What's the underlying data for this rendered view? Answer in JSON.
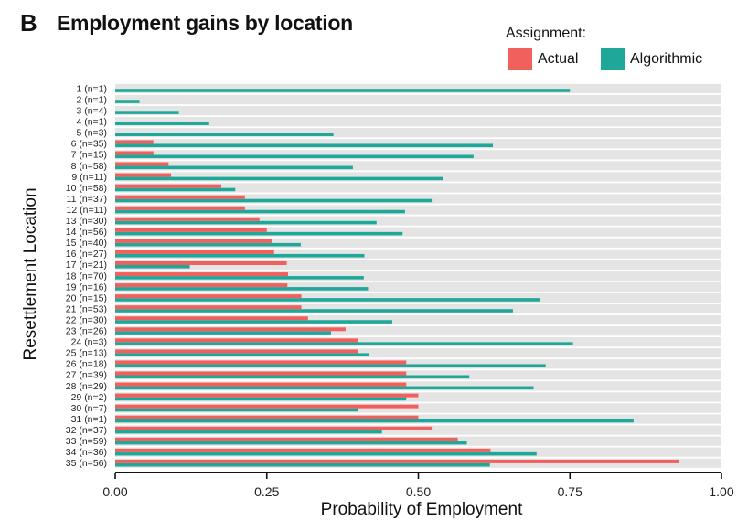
{
  "panel_letter": "B",
  "chart_data": {
    "type": "bar",
    "orientation": "horizontal",
    "title": "Employment gains by location",
    "xlabel": "Probability of Employment",
    "ylabel": "Resettlement Location",
    "xlim": [
      0,
      1
    ],
    "xticks": [
      "0.00",
      "0.25",
      "0.50",
      "0.75",
      "1.00"
    ],
    "legend_title": "Assignment:",
    "legend_position": "top-right",
    "grid": false,
    "categories": [
      "1 (n=1)",
      "2 (n=1)",
      "3 (n=4)",
      "4 (n=1)",
      "5 (n=3)",
      "6 (n=35)",
      "7 (n=15)",
      "8 (n=58)",
      "9 (n=11)",
      "10 (n=58)",
      "11 (n=37)",
      "12 (n=11)",
      "13 (n=30)",
      "14 (n=56)",
      "15 (n=40)",
      "16 (n=27)",
      "17 (n=21)",
      "18 (n=70)",
      "19 (n=16)",
      "20 (n=15)",
      "21 (n=53)",
      "22 (n=30)",
      "23 (n=26)",
      "24 (n=3)",
      "25 (n=13)",
      "26 (n=18)",
      "27 (n=39)",
      "28 (n=29)",
      "29 (n=2)",
      "30 (n=7)",
      "31 (n=1)",
      "32 (n=37)",
      "33 (n=59)",
      "34 (n=36)",
      "35 (n=56)"
    ],
    "series": [
      {
        "name": "Actual",
        "color": "#f0605d",
        "values": [
          0.0,
          0.0,
          0.0,
          0.0,
          0.0,
          0.063,
          0.063,
          0.088,
          0.092,
          0.175,
          0.214,
          0.214,
          0.238,
          0.25,
          0.258,
          0.262,
          0.283,
          0.285,
          0.284,
          0.307,
          0.307,
          0.318,
          0.38,
          0.4,
          0.4,
          0.48,
          0.48,
          0.48,
          0.5,
          0.5,
          0.5,
          0.522,
          0.565,
          0.619,
          0.93
        ]
      },
      {
        "name": "Algorithmic",
        "color": "#1fa89a",
        "values": [
          0.75,
          0.04,
          0.105,
          0.155,
          0.36,
          0.623,
          0.591,
          0.392,
          0.54,
          0.198,
          0.522,
          0.478,
          0.431,
          0.474,
          0.306,
          0.411,
          0.123,
          0.41,
          0.417,
          0.7,
          0.656,
          0.457,
          0.356,
          0.755,
          0.418,
          0.71,
          0.584,
          0.69,
          0.48,
          0.4,
          0.855,
          0.44,
          0.58,
          0.695,
          0.618
        ]
      }
    ]
  }
}
